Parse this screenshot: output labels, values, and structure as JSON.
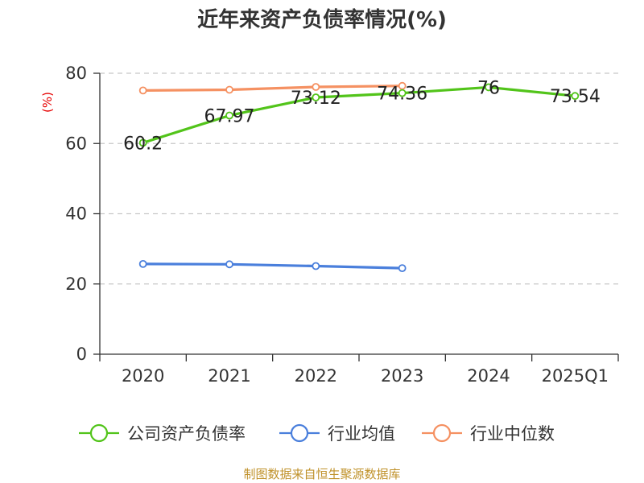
{
  "title": "近年来资产负债率情况(%)",
  "unit": "(%)",
  "source": "制图数据来自恒生聚源数据库",
  "chart_data": {
    "type": "line",
    "categories": [
      "2020",
      "2021",
      "2022",
      "2023",
      "2024",
      "2025Q1"
    ],
    "ylim": [
      0,
      80
    ],
    "yticks": [
      0,
      20,
      40,
      60,
      80
    ],
    "grid": true,
    "legend_position": "bottom",
    "series": [
      {
        "name": "公司资产负债率",
        "color": "#52c41a",
        "values": [
          60.2,
          67.97,
          73.12,
          74.36,
          76,
          73.54
        ],
        "labels": [
          "60.2",
          "67.97",
          "73.12",
          "74.36",
          "76",
          "73.54"
        ]
      },
      {
        "name": "行业均值",
        "color": "#4a7fdc",
        "values": [
          25.7,
          25.6,
          25.1,
          24.5,
          null,
          null
        ]
      },
      {
        "name": "行业中位数",
        "color": "#f59162",
        "values": [
          75.1,
          75.3,
          76.1,
          76.4,
          null,
          null
        ]
      }
    ]
  }
}
